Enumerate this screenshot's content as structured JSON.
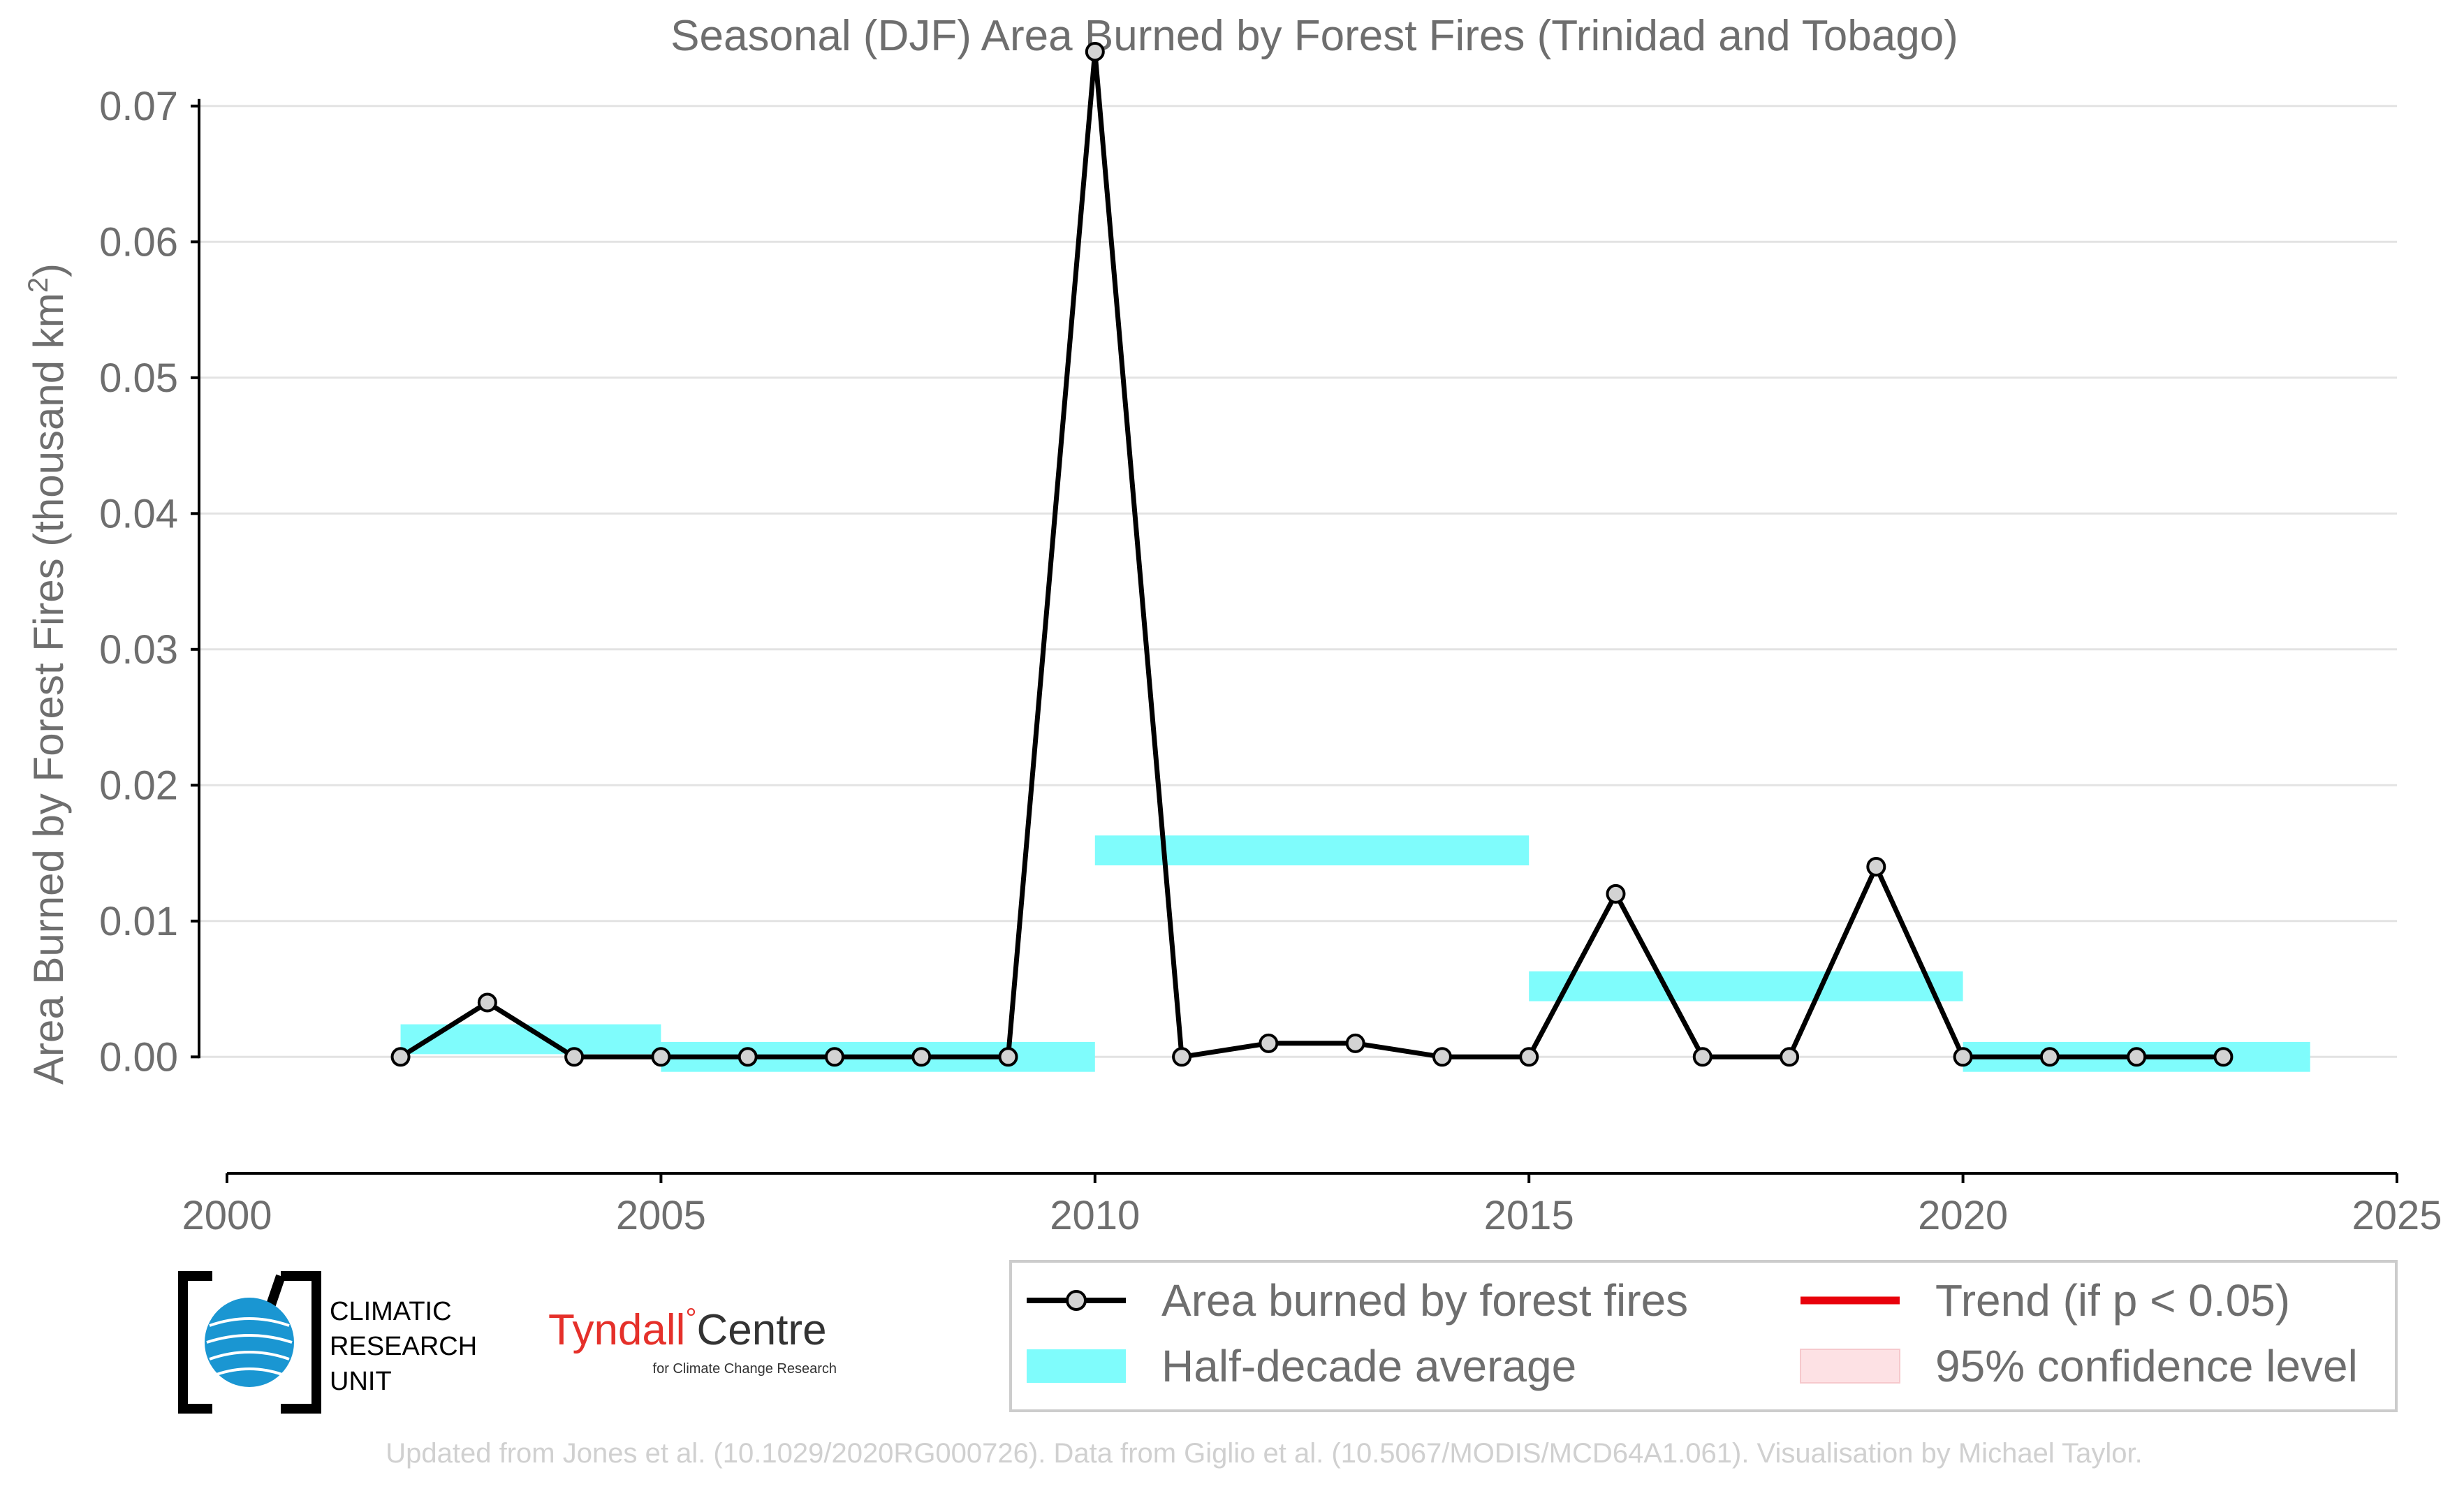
{
  "chart_data": {
    "type": "line",
    "title": "Seasonal (DJF) Area Burned by Forest Fires (Trinidad and Tobago)",
    "ylabel": "Area Burned by Forest Fires (thousand km",
    "ylabel_sup": "2",
    "ylabel_tail": ")",
    "xlim": [
      2000,
      2025
    ],
    "ylim": [
      -0.006,
      0.074
    ],
    "xticks": [
      2000,
      2005,
      2010,
      2015,
      2020,
      2025
    ],
    "yticks": [
      0.0,
      0.01,
      0.02,
      0.03,
      0.04,
      0.05,
      0.06,
      0.07
    ],
    "ytick_labels": [
      "0.00",
      "0.01",
      "0.02",
      "0.03",
      "0.04",
      "0.05",
      "0.06",
      "0.07"
    ],
    "grid": true,
    "series": [
      {
        "name": "Area burned by forest fires",
        "color": "#000000",
        "marker_fill": "#d3d3d3",
        "x": [
          2002,
          2003,
          2004,
          2005,
          2006,
          2007,
          2008,
          2009,
          2010,
          2011,
          2012,
          2013,
          2014,
          2015,
          2016,
          2017,
          2018,
          2019,
          2020,
          2021,
          2022,
          2023
        ],
        "y": [
          0.0,
          0.004,
          0.0,
          0.0,
          0.0,
          0.0,
          0.0,
          0.0,
          0.074,
          0.0,
          0.001,
          0.001,
          0.0,
          0.0,
          0.012,
          0.0,
          0.0,
          0.014,
          0.0,
          0.0,
          0.0,
          0.0
        ]
      }
    ],
    "half_decade_average": {
      "name": "Half-decade average",
      "color": "#7ffcfc",
      "bands": [
        {
          "x_start": 2002,
          "x_end": 2005,
          "y_low": 0.0002,
          "y_high": 0.0024
        },
        {
          "x_start": 2005,
          "x_end": 2010,
          "y_low": -0.0011,
          "y_high": 0.0011
        },
        {
          "x_start": 2010,
          "x_end": 2015,
          "y_low": 0.0141,
          "y_high": 0.0163
        },
        {
          "x_start": 2015,
          "x_end": 2020,
          "y_low": 0.0041,
          "y_high": 0.0063
        },
        {
          "x_start": 2020,
          "x_end": 2024,
          "y_low": -0.0011,
          "y_high": 0.0011
        }
      ]
    },
    "legend": {
      "placement": "bottom-right",
      "entries": [
        {
          "label": "Area burned by forest fires",
          "kind": "line-marker",
          "color": "#000000"
        },
        {
          "label": "Trend (if p < 0.05)",
          "kind": "line",
          "color": "#e8000b"
        },
        {
          "label": "Half-decade average",
          "kind": "band",
          "color": "#7ffcfc"
        },
        {
          "label": "95% confidence level",
          "kind": "band",
          "color": "#fde1e4"
        }
      ]
    }
  },
  "logos": {
    "cru": {
      "line1": "CLIMATIC",
      "line2": "RESEARCH",
      "line3": "UNIT"
    },
    "tyndall": {
      "name": "Tyndall",
      "degree": "°",
      "centre": "Centre",
      "subtitle": "for Climate Change Research",
      "color": "#e5302a"
    }
  },
  "credit": "Updated from Jones et al. (10.1029/2020RG000726). Data from Giglio et al. (10.5067/MODIS/MCD64A1.061). Visualisation by Michael Taylor."
}
